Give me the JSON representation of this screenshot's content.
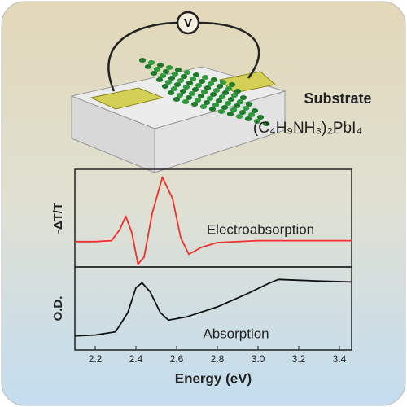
{
  "chart_data": [
    {
      "type": "line",
      "ylabel": "-ΔT/T",
      "annotation": "Electroabsorption",
      "xlim": [
        2.1,
        3.46
      ],
      "ylim": [
        0,
        1
      ],
      "x": [
        2.1,
        2.2,
        2.28,
        2.32,
        2.35,
        2.38,
        2.41,
        2.44,
        2.48,
        2.53,
        2.58,
        2.62,
        2.66,
        2.72,
        2.8,
        3.0,
        3.2,
        3.46
      ],
      "series": [
        {
          "color": "#f0302a",
          "values": [
            0.26,
            0.26,
            0.27,
            0.38,
            0.52,
            0.35,
            0.03,
            0.1,
            0.55,
            0.92,
            0.7,
            0.3,
            0.13,
            0.2,
            0.25,
            0.27,
            0.27,
            0.27
          ]
        }
      ]
    },
    {
      "type": "line",
      "ylabel": "O.D.",
      "xlabel": "Energy (eV)",
      "annotation": "Absorption",
      "xlim": [
        2.1,
        3.46
      ],
      "ylim": [
        0,
        1
      ],
      "xticks": [
        2.2,
        2.4,
        2.6,
        2.8,
        {
          "value": 3,
          "label": "3.0"
        },
        3.2,
        3.4
      ],
      "x": [
        2.1,
        2.2,
        2.3,
        2.36,
        2.4,
        2.43,
        2.47,
        2.52,
        2.56,
        2.65,
        2.8,
        2.95,
        3.05,
        3.1,
        3.2,
        3.3,
        3.46
      ],
      "series": [
        {
          "color": "#111111",
          "values": [
            0.17,
            0.18,
            0.22,
            0.45,
            0.75,
            0.81,
            0.7,
            0.45,
            0.36,
            0.4,
            0.52,
            0.68,
            0.8,
            0.85,
            0.84,
            0.83,
            0.82
          ]
        }
      ]
    }
  ],
  "diagram": {
    "voltmeter": "V",
    "substrate": "Substrate",
    "material": "(C₄H₉NH₃)₂PbI₄"
  }
}
